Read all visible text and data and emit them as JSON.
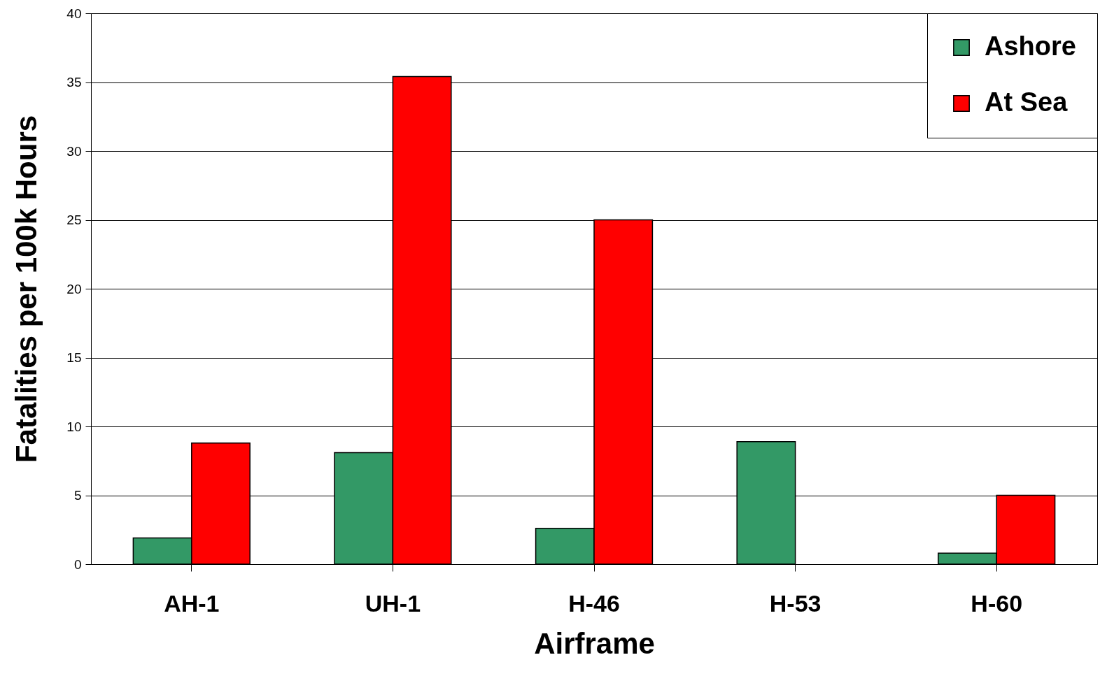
{
  "chart_data": {
    "type": "bar",
    "xlabel": "Airframe",
    "ylabel": "Fatalities per 100k Hours",
    "categories": [
      "AH-1",
      "UH-1",
      "H-46",
      "H-53",
      "H-60"
    ],
    "series": [
      {
        "name": "Ashore",
        "color": "#339966",
        "values": [
          1.9,
          8.1,
          2.6,
          8.9,
          0.8
        ]
      },
      {
        "name": "At Sea",
        "color": "#ff0000",
        "values": [
          8.8,
          35.4,
          25.0,
          null,
          5.0
        ]
      }
    ],
    "ylim": [
      0,
      40
    ],
    "yticks": [
      0,
      5,
      10,
      15,
      20,
      25,
      30,
      35,
      40
    ],
    "grid": "y",
    "legend": "top right"
  }
}
